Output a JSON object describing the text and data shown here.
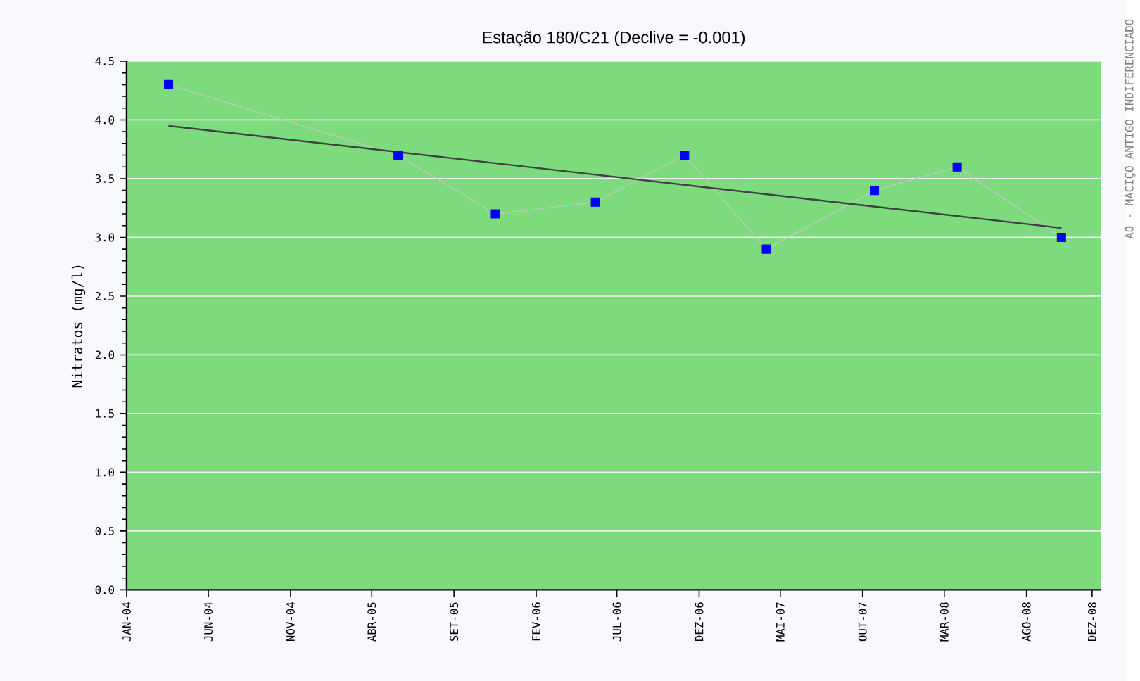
{
  "chart_data": {
    "type": "line",
    "title": "Estação 180/C21 (Declive = -0.001)",
    "ylabel": "Nitratos (mg/l)",
    "y2label": "A0 - MACIÇO ANTIGO INDIFERENCIADO",
    "x": [
      "2004-03-19",
      "2005-05-20",
      "2005-11-17",
      "2006-05-22",
      "2006-11-04",
      "2007-04-05",
      "2007-10-23",
      "2008-03-25",
      "2008-10-05"
    ],
    "series": [
      {
        "color": "#0000ff",
        "marker": "square",
        "values": [
          4.3,
          3.7,
          3.2,
          3.3,
          3.7,
          2.9,
          3.4,
          3.6,
          3.0
        ]
      },
      {
        "color": "#404040",
        "marker": "none",
        "x": [
          "2004-03-19",
          "2008-10-05"
        ],
        "values": [
          3.95,
          3.08
        ]
      }
    ],
    "xlim": [
      "2004-01-01",
      "2008-12-17"
    ],
    "xticks": [
      {
        "value": "2004-01-01",
        "label": "JAN-04"
      },
      {
        "value": "2004-06-01",
        "label": "JUN-04"
      },
      {
        "value": "2004-11-01",
        "label": "NOV-04"
      },
      {
        "value": "2005-04-01",
        "label": "ABR-05"
      },
      {
        "value": "2005-09-01",
        "label": "SET-05"
      },
      {
        "value": "2006-02-01",
        "label": "FEV-06"
      },
      {
        "value": "2006-07-01",
        "label": "JUL-06"
      },
      {
        "value": "2006-12-01",
        "label": "DEZ-06"
      },
      {
        "value": "2007-05-01",
        "label": "MAI-07"
      },
      {
        "value": "2007-10-01",
        "label": "OUT-07"
      },
      {
        "value": "2008-03-01",
        "label": "MAR-08"
      },
      {
        "value": "2008-08-01",
        "label": "AGO-08"
      },
      {
        "value": "2008-12-01",
        "label": "DEZ-08"
      }
    ],
    "ylim": [
      0,
      4.5
    ],
    "yticks": [
      {
        "value": 0,
        "label": "0.0"
      },
      {
        "value": 0.5,
        "label": "0.5"
      },
      {
        "value": 1,
        "label": "1.0"
      },
      {
        "value": 1.5,
        "label": "1.5"
      },
      {
        "value": 2,
        "label": "2.0"
      },
      {
        "value": 2.5,
        "label": "2.5"
      },
      {
        "value": 3,
        "label": "3.0"
      },
      {
        "value": 3.5,
        "label": "3.5"
      },
      {
        "value": 4,
        "label": "4.0"
      },
      {
        "value": 4.5,
        "label": "4.5"
      }
    ],
    "grid": "y"
  }
}
